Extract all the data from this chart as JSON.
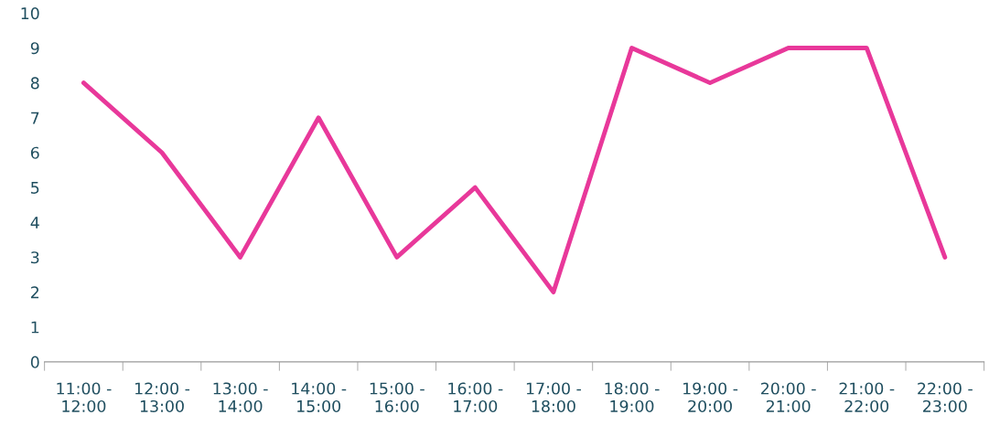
{
  "chart_data": {
    "type": "line",
    "categories": [
      "11:00 -\n12:00",
      "12:00 -\n13:00",
      "13:00 -\n14:00",
      "14:00 -\n15:00",
      "15:00 -\n16:00",
      "16:00 -\n17:00",
      "17:00 -\n18:00",
      "18:00 -\n19:00",
      "19:00 -\n20:00",
      "20:00 -\n21:00",
      "21:00 -\n22:00",
      "22:00 -\n23:00"
    ],
    "series": [
      {
        "color": "#e8389a",
        "values": [
          8,
          6,
          3,
          7,
          3,
          5,
          2,
          9,
          8,
          9,
          9,
          3
        ]
      }
    ],
    "ylim": [
      0,
      10
    ],
    "yticks": [
      0,
      1,
      2,
      3,
      4,
      5,
      6,
      7,
      8,
      9,
      10
    ],
    "grid": false,
    "legend": false,
    "marker": "none",
    "line_style": "solid"
  }
}
